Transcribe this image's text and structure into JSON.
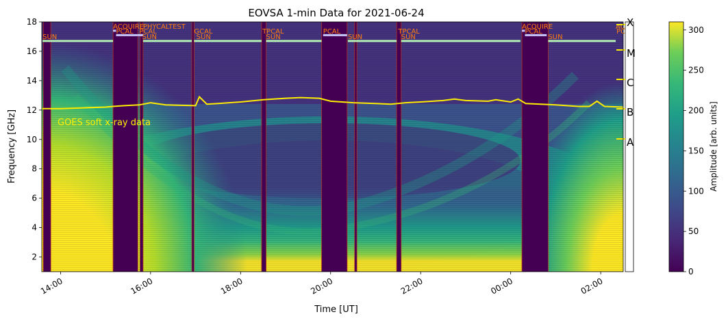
{
  "chart_data": {
    "type": "heatmap",
    "title": "EOVSA 1-min Data for 2021-06-24",
    "xlabel": "Time [UT]",
    "ylabel": "Frequency [GHz]",
    "x_range": [
      "13:35",
      "02:30"
    ],
    "x_ticks": [
      "14:00",
      "16:00",
      "18:00",
      "20:00",
      "22:00",
      "00:00",
      "02:00"
    ],
    "ylim": [
      1,
      18
    ],
    "y_ticks": [
      2,
      4,
      6,
      8,
      10,
      12,
      14,
      16,
      18
    ],
    "colorbar": {
      "label": "Amplitude [arb. units]",
      "range": [
        0,
        310
      ],
      "ticks": [
        0,
        50,
        100,
        150,
        200,
        250,
        300
      ],
      "colormap": "viridis"
    },
    "goes": {
      "label": "GOES soft x-ray data",
      "color": "#ffee00",
      "class_labels": [
        "X",
        "M",
        "C",
        "B",
        "A"
      ],
      "points": [
        [
          "13:35",
          12.1
        ],
        [
          "14:00",
          12.1
        ],
        [
          "14:30",
          12.15
        ],
        [
          "15:00",
          12.2
        ],
        [
          "15:10",
          12.25
        ],
        [
          "15:25",
          12.3
        ],
        [
          "15:45",
          12.35
        ],
        [
          "16:00",
          12.5
        ],
        [
          "16:20",
          12.35
        ],
        [
          "17:00",
          12.3
        ],
        [
          "17:05",
          12.9
        ],
        [
          "17:15",
          12.4
        ],
        [
          "17:30",
          12.45
        ],
        [
          "18:00",
          12.55
        ],
        [
          "18:30",
          12.7
        ],
        [
          "19:00",
          12.8
        ],
        [
          "19:20",
          12.85
        ],
        [
          "19:45",
          12.8
        ],
        [
          "20:00",
          12.6
        ],
        [
          "20:30",
          12.5
        ],
        [
          "21:00",
          12.45
        ],
        [
          "21:20",
          12.4
        ],
        [
          "21:40",
          12.5
        ],
        [
          "22:00",
          12.55
        ],
        [
          "22:30",
          12.65
        ],
        [
          "22:45",
          12.75
        ],
        [
          "23:00",
          12.65
        ],
        [
          "23:30",
          12.6
        ],
        [
          "23:40",
          12.7
        ],
        [
          "00:00",
          12.55
        ],
        [
          "00:10",
          12.75
        ],
        [
          "00:20",
          12.45
        ],
        [
          "00:40",
          12.4
        ],
        [
          "01:00",
          12.35
        ],
        [
          "01:30",
          12.25
        ],
        [
          "01:45",
          12.25
        ],
        [
          "01:55",
          12.6
        ],
        [
          "02:05",
          12.25
        ],
        [
          "02:30",
          12.2
        ]
      ]
    },
    "gaps": [
      [
        "13:37",
        "13:47"
      ],
      [
        "15:10",
        "15:43"
      ],
      [
        "15:46",
        "15:50"
      ],
      [
        "16:55",
        "16:58"
      ],
      [
        "18:28",
        "18:34"
      ],
      [
        "19:48",
        "20:22"
      ],
      [
        "20:32",
        "20:35"
      ],
      [
        "21:28",
        "21:34"
      ],
      [
        "00:15",
        "00:50"
      ]
    ],
    "scan_annotations": [
      {
        "time": "13:36",
        "label": "SUN",
        "row": 3
      },
      {
        "time": "15:10",
        "label": "ACQUIRE",
        "row": 1
      },
      {
        "time": "15:14",
        "label": "PCAL",
        "row": 2
      },
      {
        "time": "15:45",
        "label": "PCAL",
        "row": 2
      },
      {
        "time": "15:49",
        "label": "SUN",
        "row": 3
      },
      {
        "time": "15:50",
        "label": "PHYCALTEST",
        "row": 1
      },
      {
        "time": "16:58",
        "label": "GCAL",
        "row": 2
      },
      {
        "time": "17:01",
        "label": "SUN",
        "row": 3
      },
      {
        "time": "18:29",
        "label": "TPCAL",
        "row": 2
      },
      {
        "time": "18:34",
        "label": "SUN",
        "row": 3
      },
      {
        "time": "19:50",
        "label": "PCAL",
        "row": 2
      },
      {
        "time": "20:23",
        "label": "SUN",
        "row": 3
      },
      {
        "time": "21:30",
        "label": "TPCAL",
        "row": 2
      },
      {
        "time": "21:34",
        "label": "SUN",
        "row": 3
      },
      {
        "time": "00:15",
        "label": "ACQUIRE",
        "row": 1
      },
      {
        "time": "00:19",
        "label": "PCAL",
        "row": 2
      },
      {
        "time": "00:50",
        "label": "SUN",
        "row": 3
      },
      {
        "time": "02:20",
        "label": "AC",
        "row": 1
      },
      {
        "time": "02:21",
        "label": "PC",
        "row": 2
      }
    ],
    "schedule_bars": [
      {
        "start": "13:36",
        "end": "15:10",
        "y": 16.7,
        "color": "#b4f0b4"
      },
      {
        "start": "15:10",
        "end": "15:14",
        "y": 17.4,
        "color": "#c8c8ff"
      },
      {
        "start": "15:14",
        "end": "15:42",
        "y": 17.1,
        "color": "#c8c8ff"
      },
      {
        "start": "15:42",
        "end": "15:50",
        "y": 17.1,
        "color": "#c8c8ff"
      },
      {
        "start": "15:50",
        "end": "16:55",
        "y": 16.7,
        "color": "#b4f0b4"
      },
      {
        "start": "16:58",
        "end": "18:28",
        "y": 16.7,
        "color": "#b4f0b4"
      },
      {
        "start": "18:34",
        "end": "19:48",
        "y": 16.7,
        "color": "#b4f0b4"
      },
      {
        "start": "19:50",
        "end": "20:22",
        "y": 17.1,
        "color": "#c8c8ff"
      },
      {
        "start": "20:23",
        "end": "21:28",
        "y": 16.7,
        "color": "#b4f0b4"
      },
      {
        "start": "21:34",
        "end": "00:13",
        "y": 16.7,
        "color": "#b4f0b4"
      },
      {
        "start": "00:15",
        "end": "00:19",
        "y": 17.4,
        "color": "#c8c8ff"
      },
      {
        "start": "00:19",
        "end": "00:48",
        "y": 17.1,
        "color": "#c8c8ff"
      },
      {
        "start": "00:50",
        "end": "02:20",
        "y": 16.7,
        "color": "#b4f0b4"
      }
    ]
  }
}
